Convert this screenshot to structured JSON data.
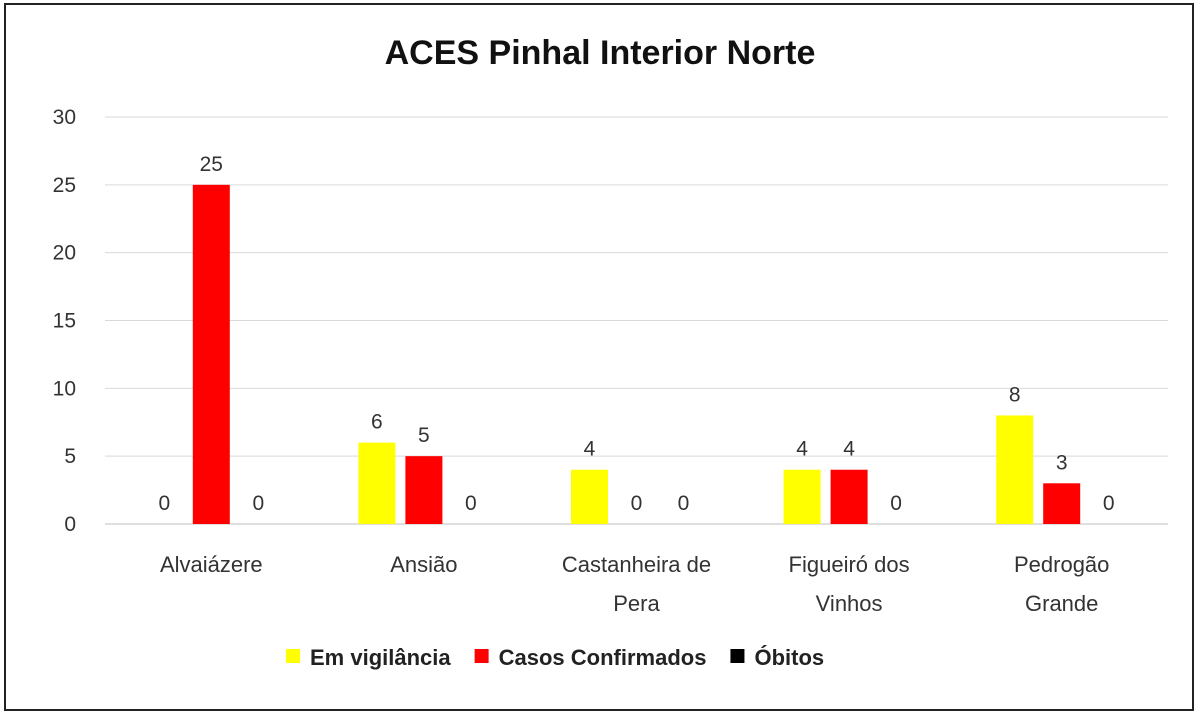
{
  "chart_data": {
    "type": "bar",
    "title": "ACES Pinhal Interior Norte",
    "xlabel": "",
    "ylabel": "",
    "ylim": [
      0,
      30
    ],
    "yticks": [
      0,
      5,
      10,
      15,
      20,
      25,
      30
    ],
    "grid": true,
    "legend_position": "bottom",
    "categories": [
      [
        "Alvaiázere"
      ],
      [
        "Ansião"
      ],
      [
        "Castanheira de",
        "Pera"
      ],
      [
        "Figueiró dos",
        "Vinhos"
      ],
      [
        "Pedrogão",
        "Grande"
      ]
    ],
    "series": [
      {
        "name": "Em vigilância",
        "color": "#ffff00",
        "values": [
          0,
          6,
          4,
          4,
          8
        ]
      },
      {
        "name": "Casos Confirmados",
        "color": "#ff0000",
        "values": [
          25,
          5,
          0,
          4,
          3
        ]
      },
      {
        "name": "Óbitos",
        "color": "#000000",
        "values": [
          0,
          0,
          0,
          0,
          0
        ]
      }
    ]
  }
}
